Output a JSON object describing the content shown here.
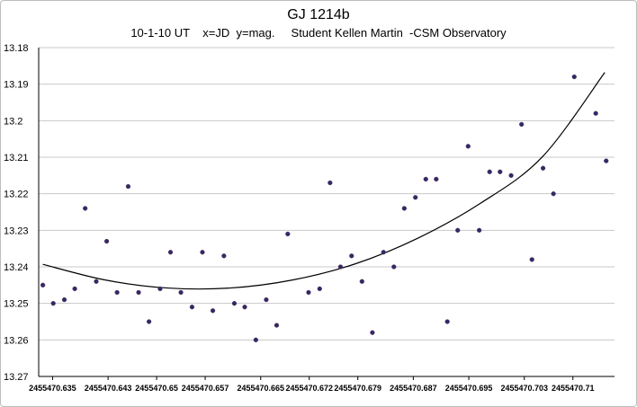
{
  "chart_data": {
    "type": "scatter",
    "title": "GJ 1214b",
    "subtitle": "10-1-10 UT    x=JD  y=mag.     Student Kellen Martin  -CSM Observatory",
    "xlabel": "",
    "ylabel": "",
    "y_reversed": true,
    "ylim": [
      13.18,
      13.27
    ],
    "xlim": [
      2455470.633,
      2455470.716
    ],
    "grid": "horizontal",
    "legend": "none",
    "y_ticks": [
      "13.18",
      "13.19",
      "13.2",
      "13.21",
      "13.22",
      "13.23",
      "13.24",
      "13.25",
      "13.26",
      "13.27"
    ],
    "x_ticks": [
      "2455470.635",
      "2455470.643",
      "2455470.65",
      "2455470.657",
      "2455470.665",
      "2455470.672",
      "2455470.679",
      "2455470.687",
      "2455470.695",
      "2455470.703",
      "2455470.71"
    ],
    "point_color": "#2e2a6b",
    "trend_color": "#000000",
    "series": [
      {
        "points": [
          [
            2455470.6336,
            13.245
          ],
          [
            2455470.6351,
            13.25
          ],
          [
            2455470.6367,
            13.249
          ],
          [
            2455470.6382,
            13.246
          ],
          [
            2455470.6397,
            13.224
          ],
          [
            2455470.6413,
            13.244
          ],
          [
            2455470.6428,
            13.233
          ],
          [
            2455470.6443,
            13.247
          ],
          [
            2455470.6459,
            13.218
          ],
          [
            2455470.6474,
            13.247
          ],
          [
            2455470.6489,
            13.255
          ],
          [
            2455470.6505,
            13.246
          ],
          [
            2455470.652,
            13.236
          ],
          [
            2455470.6535,
            13.247
          ],
          [
            2455470.6551,
            13.251
          ],
          [
            2455470.6566,
            13.236
          ],
          [
            2455470.6581,
            13.252
          ],
          [
            2455470.6597,
            13.237
          ],
          [
            2455470.6612,
            13.25
          ],
          [
            2455470.6627,
            13.251
          ],
          [
            2455470.6643,
            13.26
          ],
          [
            2455470.6658,
            13.249
          ],
          [
            2455470.6673,
            13.256
          ],
          [
            2455470.6689,
            13.231
          ],
          [
            2455470.6719,
            13.247
          ],
          [
            2455470.6735,
            13.246
          ],
          [
            2455470.675,
            13.217
          ],
          [
            2455470.6765,
            13.24
          ],
          [
            2455470.6781,
            13.237
          ],
          [
            2455470.6796,
            13.244
          ],
          [
            2455470.6811,
            13.258
          ],
          [
            2455470.6827,
            13.236
          ],
          [
            2455470.6842,
            13.24
          ],
          [
            2455470.6857,
            13.224
          ],
          [
            2455470.6873,
            13.221
          ],
          [
            2455470.6888,
            13.216
          ],
          [
            2455470.6903,
            13.216
          ],
          [
            2455470.6919,
            13.255
          ],
          [
            2455470.6934,
            13.23
          ],
          [
            2455470.6949,
            13.207
          ],
          [
            2455470.6965,
            13.23
          ],
          [
            2455470.698,
            13.214
          ],
          [
            2455470.6995,
            13.214
          ],
          [
            2455470.7011,
            13.215
          ],
          [
            2455470.7026,
            13.201
          ],
          [
            2455470.7041,
            13.238
          ],
          [
            2455470.7057,
            13.213
          ],
          [
            2455470.7072,
            13.22
          ],
          [
            2455470.7102,
            13.188
          ],
          [
            2455470.7133,
            13.198
          ],
          [
            2455470.7148,
            13.211
          ]
        ]
      }
    ],
    "trendline": {
      "type": "polynomial",
      "points": [
        [
          2455470.6336,
          13.2393
        ],
        [
          2455470.6426,
          13.2436
        ],
        [
          2455470.6516,
          13.2458
        ],
        [
          2455470.6606,
          13.2458
        ],
        [
          2455470.6696,
          13.2436
        ],
        [
          2455470.6786,
          13.2392
        ],
        [
          2455470.6876,
          13.2322
        ],
        [
          2455470.6966,
          13.2227
        ],
        [
          2455470.7056,
          13.2099
        ],
        [
          2455470.7146,
          13.1868
        ]
      ]
    }
  }
}
